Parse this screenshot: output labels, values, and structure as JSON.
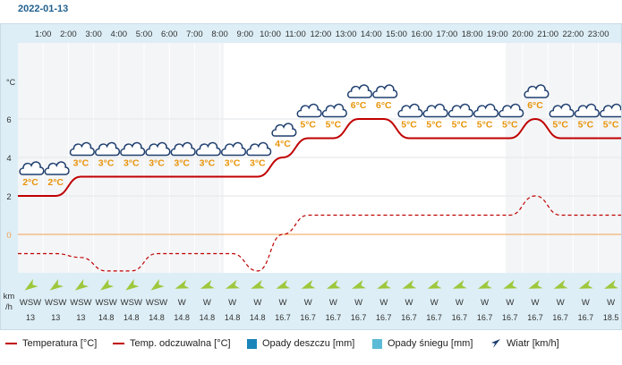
{
  "date": "2022-01-13",
  "hours": [
    "1:00",
    "2:00",
    "3:00",
    "4:00",
    "5:00",
    "6:00",
    "7:00",
    "8:00",
    "9:00",
    "10:00",
    "11:00",
    "12:00",
    "13:00",
    "14:00",
    "15:00",
    "16:00",
    "17:00",
    "18:00",
    "19:00",
    "20:00",
    "21:00",
    "22:00",
    "23:00"
  ],
  "y_axis": {
    "unit": "°C",
    "ticks": [
      "6",
      "4",
      "2",
      "0"
    ]
  },
  "wind_axis": {
    "unit_top": "km",
    "unit_bottom": "/h"
  },
  "forecast": [
    {
      "temp_label": "2°C",
      "temp": 2.0,
      "feels": -1.0,
      "wind_dir": "WSW",
      "wind_speed": "13"
    },
    {
      "temp_label": "2°C",
      "temp": 2.0,
      "feels": -1.0,
      "wind_dir": "WSW",
      "wind_speed": "13"
    },
    {
      "temp_label": "3°C",
      "temp": 3.0,
      "feels": -1.2,
      "wind_dir": "WSW",
      "wind_speed": "13"
    },
    {
      "temp_label": "3°C",
      "temp": 3.0,
      "feels": -1.9,
      "wind_dir": "WSW",
      "wind_speed": "14.8"
    },
    {
      "temp_label": "3°C",
      "temp": 3.0,
      "feels": -1.9,
      "wind_dir": "WSW",
      "wind_speed": "14.8"
    },
    {
      "temp_label": "3°C",
      "temp": 3.0,
      "feels": -1.0,
      "wind_dir": "WSW",
      "wind_speed": "14.8"
    },
    {
      "temp_label": "3°C",
      "temp": 3.0,
      "feels": -1.0,
      "wind_dir": "W",
      "wind_speed": "14.8"
    },
    {
      "temp_label": "3°C",
      "temp": 3.0,
      "feels": -1.0,
      "wind_dir": "W",
      "wind_speed": "14.8"
    },
    {
      "temp_label": "3°C",
      "temp": 3.0,
      "feels": -1.0,
      "wind_dir": "W",
      "wind_speed": "14.8"
    },
    {
      "temp_label": "3°C",
      "temp": 3.0,
      "feels": -1.9,
      "wind_dir": "W",
      "wind_speed": "14.8"
    },
    {
      "temp_label": "4°C",
      "temp": 4.0,
      "feels": 0.0,
      "wind_dir": "W",
      "wind_speed": "16.7"
    },
    {
      "temp_label": "5°C",
      "temp": 5.0,
      "feels": 1.0,
      "wind_dir": "W",
      "wind_speed": "16.7"
    },
    {
      "temp_label": "5°C",
      "temp": 5.0,
      "feels": 1.0,
      "wind_dir": "W",
      "wind_speed": "16.7"
    },
    {
      "temp_label": "6°C",
      "temp": 6.0,
      "feels": 1.0,
      "wind_dir": "W",
      "wind_speed": "16.7"
    },
    {
      "temp_label": "6°C",
      "temp": 6.0,
      "feels": 1.0,
      "wind_dir": "W",
      "wind_speed": "16.7"
    },
    {
      "temp_label": "5°C",
      "temp": 5.0,
      "feels": 1.0,
      "wind_dir": "W",
      "wind_speed": "16.7"
    },
    {
      "temp_label": "5°C",
      "temp": 5.0,
      "feels": 1.0,
      "wind_dir": "W",
      "wind_speed": "16.7"
    },
    {
      "temp_label": "5°C",
      "temp": 5.0,
      "feels": 1.0,
      "wind_dir": "W",
      "wind_speed": "16.7"
    },
    {
      "temp_label": "5°C",
      "temp": 5.0,
      "feels": 1.0,
      "wind_dir": "W",
      "wind_speed": "16.7"
    },
    {
      "temp_label": "5°C",
      "temp": 5.0,
      "feels": 1.0,
      "wind_dir": "W",
      "wind_speed": "16.7"
    },
    {
      "temp_label": "6°C",
      "temp": 6.0,
      "feels": 2.0,
      "wind_dir": "W",
      "wind_speed": "16.7"
    },
    {
      "temp_label": "5°C",
      "temp": 5.0,
      "feels": 1.0,
      "wind_dir": "W",
      "wind_speed": "16.7"
    },
    {
      "temp_label": "5°C",
      "temp": 5.0,
      "feels": 1.0,
      "wind_dir": "W",
      "wind_speed": "16.7"
    },
    {
      "temp_label": "5°C",
      "temp": 5.0,
      "feels": 1.0,
      "wind_dir": "W",
      "wind_speed": "18.5"
    }
  ],
  "legend": {
    "temperature": "Temperatura [°C]",
    "feels_like": "Temp. odczuwalna [°C]",
    "rain": "Opady deszczu [mm]",
    "snow": "Opady śniegu [mm]",
    "wind": "Wiatr [km/h]"
  },
  "colors": {
    "temperature": "#c00000",
    "rain": "#1a85b8",
    "snow": "#5bbbd6",
    "wind_arrow": "#9dc83c",
    "zero_line": "#f0a050",
    "label": "#e8940a"
  }
}
